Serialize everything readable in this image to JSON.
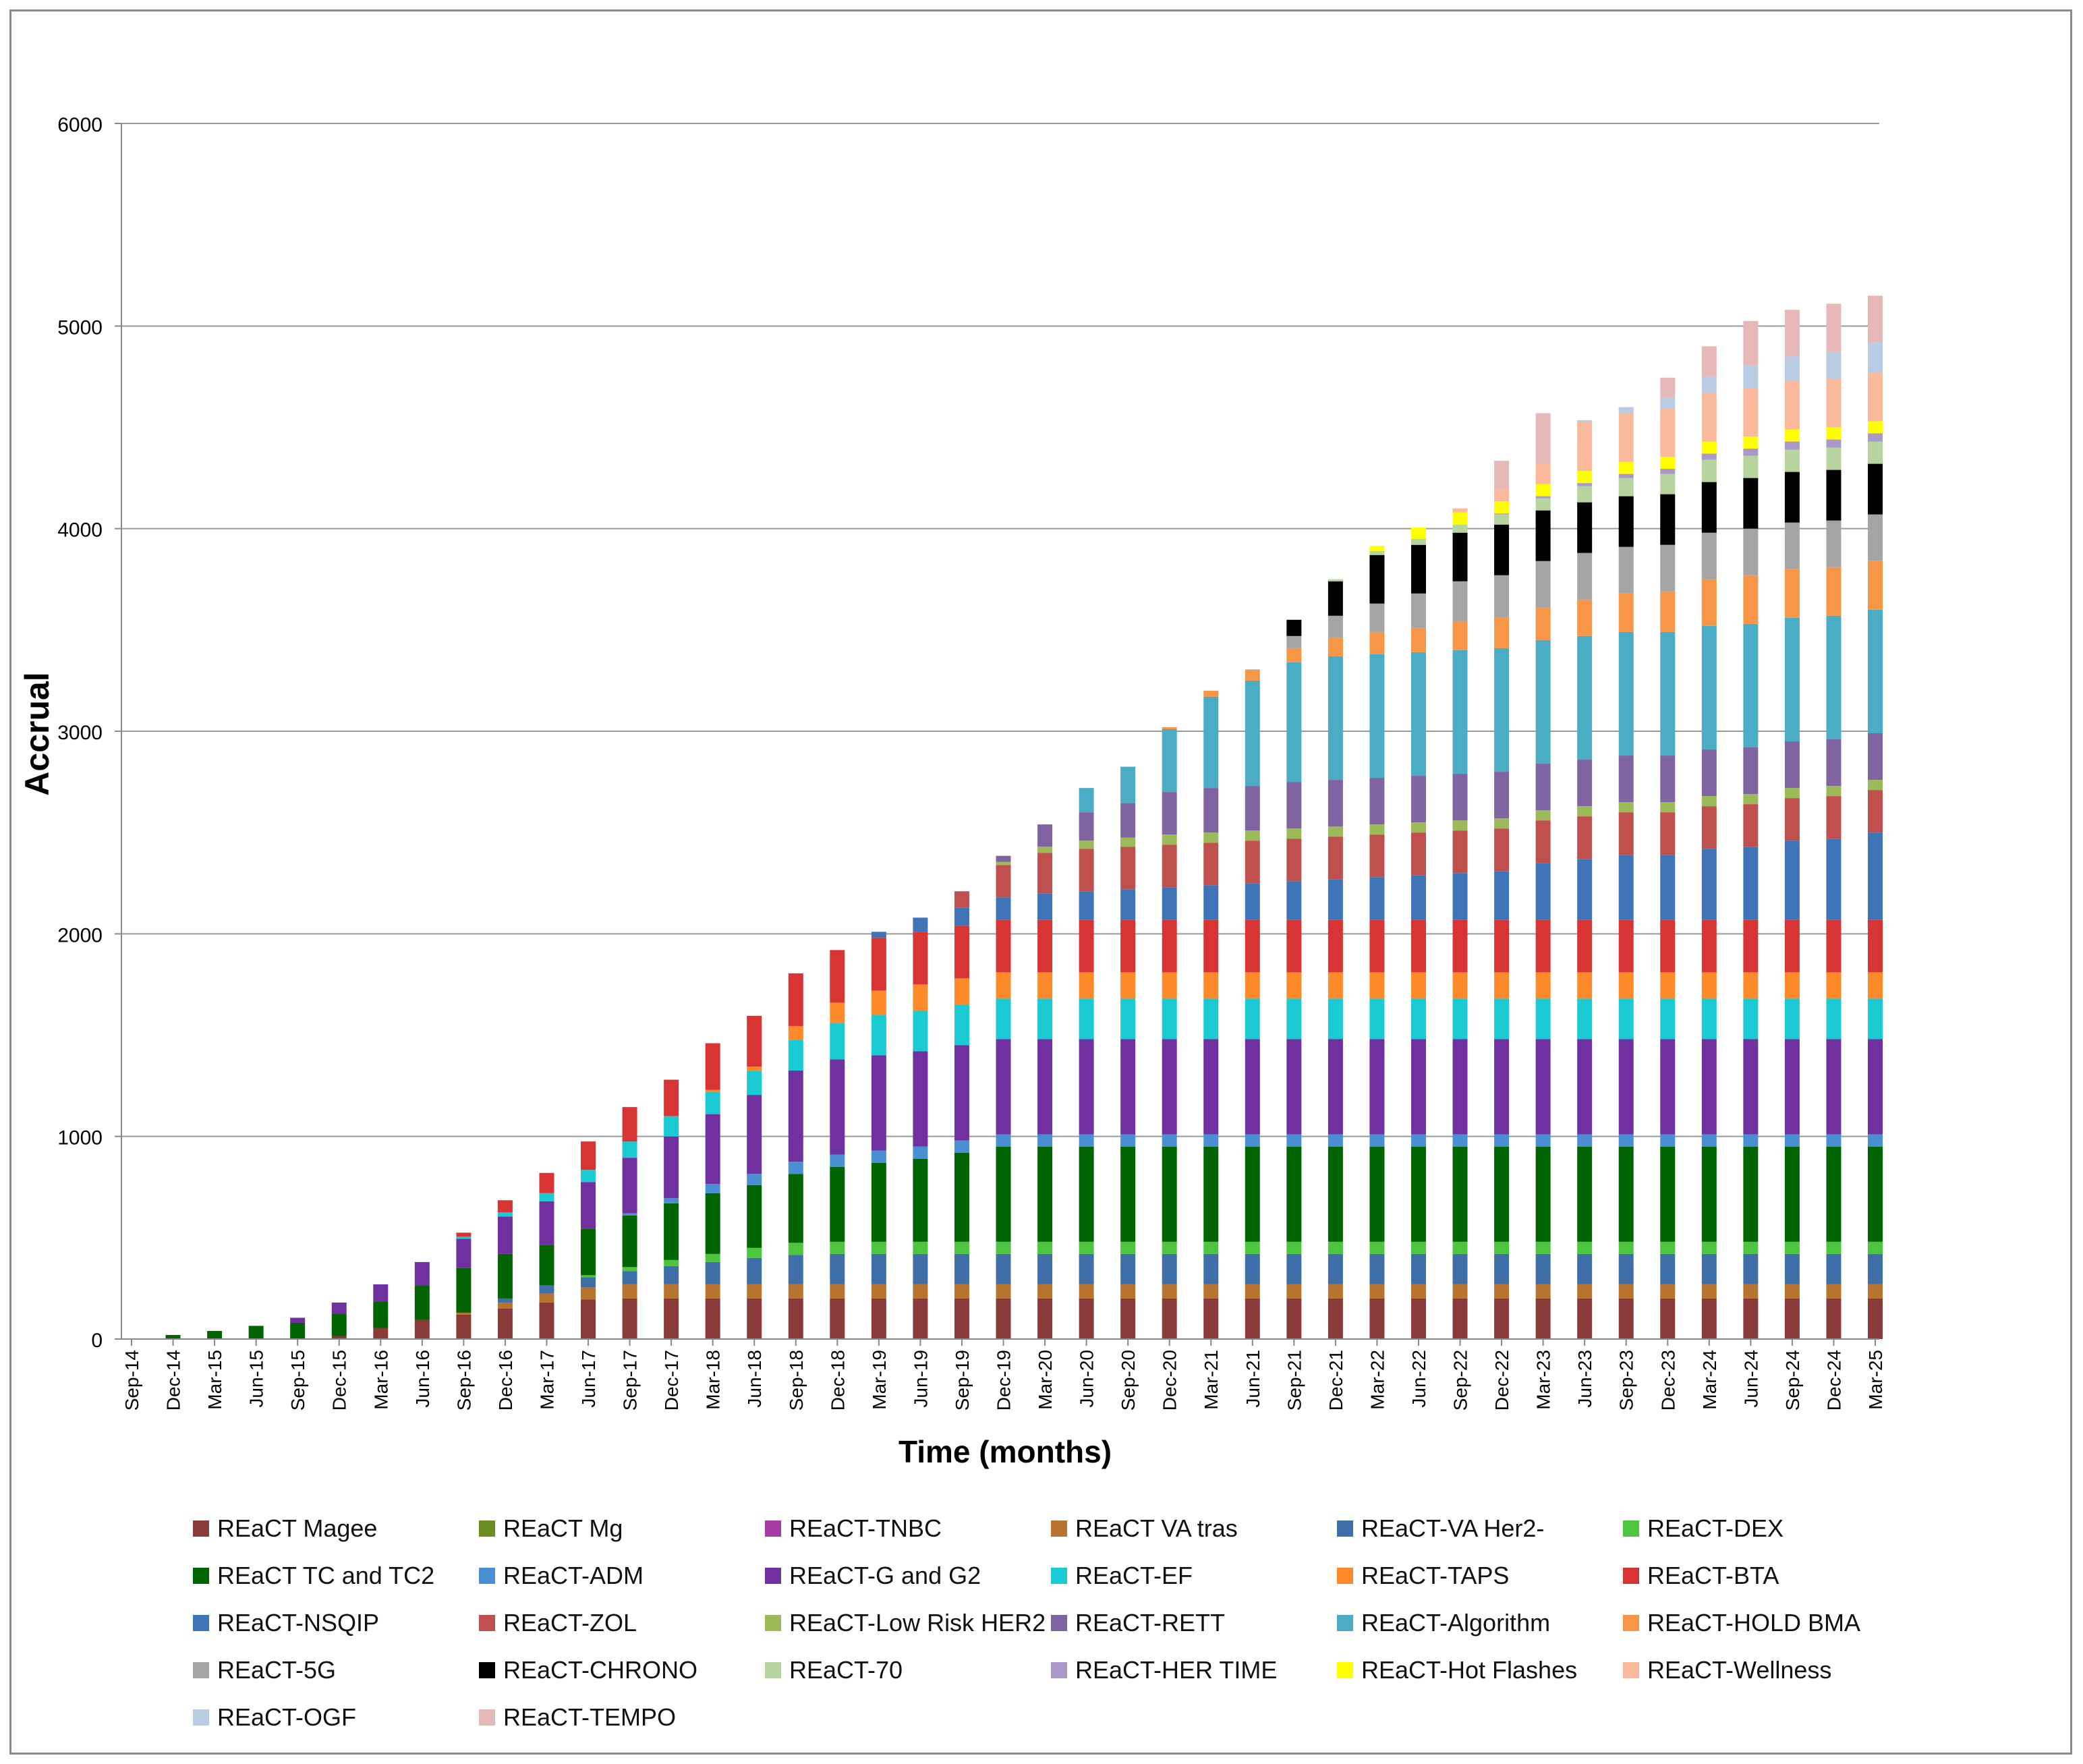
{
  "chart_data": {
    "type": "bar",
    "stacked": true,
    "title": "",
    "xlabel": "Time (months)",
    "ylabel": "Accrual",
    "ylim": [
      0,
      6000
    ],
    "yticks": [
      "0",
      "1000",
      "2000",
      "3000",
      "4000",
      "5000",
      "6000"
    ],
    "grid": true,
    "legend_position": "bottom",
    "categories": [
      "Sep-14",
      "Dec-14",
      "Mar-15",
      "Jun-15",
      "Sep-15",
      "Dec-15",
      "Mar-16",
      "Jun-16",
      "Sep-16",
      "Dec-16",
      "Mar-17",
      "Jun-17",
      "Sep-17",
      "Dec-17",
      "Mar-18",
      "Jun-18",
      "Sep-18",
      "Dec-18",
      "Mar-19",
      "Jun-19",
      "Sep-19",
      "Dec-19",
      "Mar-20",
      "Jun-20",
      "Sep-20",
      "Dec-20",
      "Mar-21",
      "Jun-21",
      "Sep-21",
      "Dec-21",
      "Mar-22",
      "Jun-22",
      "Sep-22",
      "Dec-22",
      "Mar-23",
      "Jun-23",
      "Sep-23",
      "Dec-23",
      "Mar-24",
      "Jun-24",
      "Sep-24",
      "Dec-24",
      "Mar-25"
    ],
    "series": [
      {
        "name": "REaCT Magee",
        "color": "#8B3A3A",
        "values": [
          0,
          0,
          0,
          0,
          0,
          15,
          55,
          95,
          120,
          150,
          180,
          195,
          200,
          200,
          200,
          200,
          200,
          200,
          200,
          200,
          200,
          200,
          200,
          200,
          200,
          200,
          200,
          200,
          200,
          200,
          200,
          200,
          200,
          200,
          200,
          200,
          200,
          200,
          200,
          200,
          200,
          200,
          200
        ]
      },
      {
        "name": "REaCT Mg",
        "color": "#6B8E23",
        "values": [
          0,
          0,
          0,
          0,
          0,
          0,
          0,
          0,
          0,
          0,
          0,
          0,
          0,
          0,
          0,
          0,
          0,
          0,
          0,
          0,
          0,
          0,
          0,
          0,
          0,
          0,
          0,
          0,
          0,
          0,
          0,
          0,
          0,
          0,
          0,
          0,
          0,
          0,
          0,
          0,
          0,
          0,
          0
        ]
      },
      {
        "name": "REaCT-TNBC",
        "color": "#A63BA6",
        "values": [
          0,
          0,
          0,
          0,
          0,
          0,
          0,
          0,
          0,
          0,
          0,
          0,
          0,
          0,
          0,
          0,
          0,
          0,
          0,
          0,
          0,
          0,
          0,
          0,
          0,
          0,
          0,
          0,
          0,
          0,
          0,
          0,
          0,
          0,
          0,
          0,
          0,
          0,
          0,
          0,
          0,
          0,
          0
        ]
      },
      {
        "name": "REaCT VA tras",
        "color": "#B8732E",
        "values": [
          0,
          0,
          0,
          0,
          0,
          0,
          0,
          0,
          10,
          30,
          45,
          60,
          70,
          70,
          70,
          70,
          70,
          70,
          70,
          70,
          70,
          70,
          70,
          70,
          70,
          70,
          70,
          70,
          70,
          70,
          70,
          70,
          70,
          70,
          70,
          70,
          70,
          70,
          70,
          70,
          70,
          70,
          70
        ]
      },
      {
        "name": "REaCT-VA Her2-",
        "color": "#3F6FA8",
        "values": [
          0,
          0,
          0,
          0,
          0,
          0,
          0,
          0,
          0,
          20,
          40,
          50,
          65,
          90,
          110,
          130,
          145,
          150,
          150,
          150,
          150,
          150,
          150,
          150,
          150,
          150,
          150,
          150,
          150,
          150,
          150,
          150,
          150,
          150,
          150,
          150,
          150,
          150,
          150,
          150,
          150,
          150,
          150
        ]
      },
      {
        "name": "REaCT-DEX",
        "color": "#4CC53F",
        "values": [
          0,
          0,
          0,
          0,
          0,
          0,
          0,
          0,
          0,
          0,
          0,
          10,
          20,
          30,
          40,
          50,
          60,
          60,
          60,
          60,
          60,
          60,
          60,
          60,
          60,
          60,
          60,
          60,
          60,
          60,
          60,
          60,
          60,
          60,
          60,
          60,
          60,
          60,
          60,
          60,
          60,
          60,
          60
        ]
      },
      {
        "name": "REaCT TC and TC2",
        "color": "#006400",
        "values": [
          0,
          20,
          40,
          65,
          80,
          110,
          130,
          170,
          220,
          220,
          200,
          230,
          255,
          280,
          300,
          310,
          340,
          370,
          390,
          410,
          440,
          470,
          470,
          470,
          470,
          470,
          470,
          470,
          470,
          470,
          470,
          470,
          470,
          470,
          470,
          470,
          470,
          470,
          470,
          470,
          470,
          470,
          470
        ]
      },
      {
        "name": "REaCT-ADM",
        "color": "#4A8FD4",
        "values": [
          0,
          0,
          0,
          0,
          0,
          0,
          0,
          0,
          0,
          0,
          0,
          0,
          10,
          25,
          45,
          55,
          60,
          60,
          60,
          60,
          60,
          60,
          60,
          60,
          60,
          60,
          60,
          60,
          60,
          60,
          60,
          60,
          60,
          60,
          60,
          60,
          60,
          60,
          60,
          60,
          60,
          60,
          60
        ]
      },
      {
        "name": "REaCT-G and G2",
        "color": "#7030A0",
        "values": [
          0,
          0,
          0,
          0,
          25,
          55,
          85,
          115,
          145,
          185,
          215,
          230,
          275,
          305,
          345,
          390,
          450,
          470,
          470,
          470,
          470,
          470,
          470,
          470,
          470,
          470,
          470,
          470,
          470,
          470,
          470,
          470,
          470,
          470,
          470,
          470,
          470,
          470,
          470,
          470,
          470,
          470,
          470
        ]
      },
      {
        "name": "REaCT-EF",
        "color": "#1ACBD4",
        "values": [
          0,
          0,
          0,
          0,
          0,
          0,
          0,
          0,
          10,
          20,
          40,
          60,
          80,
          100,
          110,
          120,
          150,
          180,
          200,
          200,
          200,
          200,
          200,
          200,
          200,
          200,
          200,
          200,
          200,
          200,
          200,
          200,
          200,
          200,
          200,
          200,
          200,
          200,
          200,
          200,
          200,
          200,
          200
        ]
      },
      {
        "name": "REaCT-TAPS",
        "color": "#FF8A2A",
        "values": [
          0,
          0,
          0,
          0,
          0,
          0,
          0,
          0,
          0,
          0,
          0,
          0,
          0,
          0,
          10,
          20,
          70,
          100,
          120,
          130,
          130,
          130,
          130,
          130,
          130,
          130,
          130,
          130,
          130,
          130,
          130,
          130,
          130,
          130,
          130,
          130,
          130,
          130,
          130,
          130,
          130,
          130,
          130
        ]
      },
      {
        "name": "REaCT-BTA",
        "color": "#D93434",
        "values": [
          0,
          0,
          0,
          0,
          0,
          0,
          0,
          0,
          20,
          60,
          100,
          140,
          170,
          180,
          230,
          250,
          260,
          260,
          260,
          260,
          260,
          260,
          260,
          260,
          260,
          260,
          260,
          260,
          260,
          260,
          260,
          260,
          260,
          260,
          260,
          260,
          260,
          260,
          260,
          260,
          260,
          260,
          260
        ]
      },
      {
        "name": "REaCT-NSQIP",
        "color": "#3F74B8",
        "values": [
          0,
          0,
          0,
          0,
          0,
          0,
          0,
          0,
          0,
          0,
          0,
          0,
          0,
          0,
          0,
          0,
          0,
          0,
          30,
          70,
          90,
          110,
          130,
          140,
          150,
          160,
          170,
          180,
          190,
          200,
          210,
          220,
          230,
          240,
          280,
          300,
          320,
          320,
          350,
          360,
          390,
          400,
          430
        ]
      },
      {
        "name": "REaCT-ZOL",
        "color": "#C0504D",
        "values": [
          0,
          0,
          0,
          0,
          0,
          0,
          0,
          0,
          0,
          0,
          0,
          0,
          0,
          0,
          0,
          0,
          0,
          0,
          0,
          0,
          80,
          160,
          200,
          210,
          210,
          210,
          210,
          210,
          210,
          210,
          210,
          210,
          210,
          210,
          210,
          210,
          210,
          210,
          210,
          210,
          210,
          210,
          210
        ]
      },
      {
        "name": "REaCT-Low Risk HER2",
        "color": "#9BBB59",
        "values": [
          0,
          0,
          0,
          0,
          0,
          0,
          0,
          0,
          0,
          0,
          0,
          0,
          0,
          0,
          0,
          0,
          0,
          0,
          0,
          0,
          0,
          15,
          30,
          40,
          45,
          50,
          50,
          50,
          50,
          50,
          50,
          50,
          50,
          50,
          50,
          50,
          50,
          50,
          50,
          50,
          50,
          50,
          50
        ]
      },
      {
        "name": "REaCT-RETT",
        "color": "#8064A2",
        "values": [
          0,
          0,
          0,
          0,
          0,
          0,
          0,
          0,
          0,
          0,
          0,
          0,
          0,
          0,
          0,
          0,
          0,
          0,
          0,
          0,
          0,
          30,
          110,
          140,
          170,
          210,
          220,
          220,
          230,
          230,
          230,
          230,
          230,
          230,
          230,
          230,
          230,
          230,
          230,
          230,
          230,
          230,
          230
        ]
      },
      {
        "name": "REaCT-Algorithm",
        "color": "#4BACC6",
        "values": [
          0,
          0,
          0,
          0,
          0,
          0,
          0,
          0,
          0,
          0,
          0,
          0,
          0,
          0,
          0,
          0,
          0,
          0,
          0,
          0,
          0,
          0,
          0,
          120,
          180,
          310,
          450,
          520,
          590,
          610,
          610,
          610,
          610,
          610,
          610,
          610,
          610,
          610,
          610,
          610,
          610,
          610,
          610
        ]
      },
      {
        "name": "REaCT-HOLD BMA",
        "color": "#F79646",
        "values": [
          0,
          0,
          0,
          0,
          0,
          0,
          0,
          0,
          0,
          0,
          0,
          0,
          0,
          0,
          0,
          0,
          0,
          0,
          0,
          0,
          0,
          0,
          0,
          0,
          0,
          10,
          30,
          50,
          70,
          90,
          110,
          120,
          140,
          150,
          160,
          180,
          190,
          200,
          230,
          240,
          240,
          240,
          240
        ]
      },
      {
        "name": "REaCT-5G",
        "color": "#A5A5A5",
        "values": [
          0,
          0,
          0,
          0,
          0,
          0,
          0,
          0,
          0,
          0,
          0,
          0,
          0,
          0,
          0,
          0,
          0,
          0,
          0,
          0,
          0,
          0,
          0,
          0,
          0,
          0,
          0,
          5,
          60,
          110,
          140,
          170,
          200,
          210,
          230,
          230,
          230,
          230,
          230,
          230,
          230,
          230,
          230
        ]
      },
      {
        "name": "REaCT-CHRONO",
        "color": "#000000",
        "values": [
          0,
          0,
          0,
          0,
          0,
          0,
          0,
          0,
          0,
          0,
          0,
          0,
          0,
          0,
          0,
          0,
          0,
          0,
          0,
          0,
          0,
          0,
          0,
          0,
          0,
          0,
          0,
          0,
          80,
          170,
          240,
          240,
          240,
          250,
          250,
          250,
          250,
          250,
          250,
          250,
          250,
          250,
          250
        ]
      },
      {
        "name": "REaCT-70",
        "color": "#B7D49E",
        "values": [
          0,
          0,
          0,
          0,
          0,
          0,
          0,
          0,
          0,
          0,
          0,
          0,
          0,
          0,
          0,
          0,
          0,
          0,
          0,
          0,
          0,
          0,
          0,
          0,
          0,
          0,
          0,
          0,
          0,
          10,
          20,
          30,
          40,
          50,
          60,
          80,
          90,
          100,
          110,
          110,
          110,
          110,
          110
        ]
      },
      {
        "name": "REaCT-HER TIME",
        "color": "#A998C8",
        "values": [
          0,
          0,
          0,
          0,
          0,
          0,
          0,
          0,
          0,
          0,
          0,
          0,
          0,
          0,
          0,
          0,
          0,
          0,
          0,
          0,
          0,
          0,
          0,
          0,
          0,
          0,
          0,
          0,
          0,
          0,
          0,
          0,
          0,
          5,
          10,
          15,
          20,
          25,
          30,
          35,
          40,
          40,
          40
        ]
      },
      {
        "name": "REaCT-Hot Flashes",
        "color": "#FFFF00",
        "values": [
          0,
          0,
          0,
          0,
          0,
          0,
          0,
          0,
          0,
          0,
          0,
          0,
          0,
          0,
          0,
          0,
          0,
          0,
          0,
          0,
          0,
          0,
          0,
          0,
          0,
          0,
          0,
          0,
          0,
          0,
          25,
          55,
          60,
          60,
          60,
          60,
          60,
          60,
          60,
          60,
          60,
          60,
          60
        ]
      },
      {
        "name": "REaCT-Wellness",
        "color": "#F9B99A",
        "values": [
          0,
          0,
          0,
          0,
          0,
          0,
          0,
          0,
          0,
          0,
          0,
          0,
          0,
          0,
          0,
          0,
          0,
          0,
          0,
          0,
          0,
          0,
          0,
          0,
          0,
          0,
          0,
          0,
          0,
          0,
          0,
          0,
          20,
          60,
          100,
          240,
          240,
          240,
          240,
          240,
          240,
          240,
          240
        ]
      },
      {
        "name": "REaCT-OGF",
        "color": "#B8CCE4",
        "values": [
          0,
          0,
          0,
          0,
          0,
          0,
          0,
          0,
          0,
          0,
          0,
          0,
          0,
          0,
          0,
          0,
          0,
          0,
          0,
          0,
          0,
          0,
          0,
          0,
          0,
          0,
          0,
          0,
          0,
          0,
          0,
          0,
          0,
          0,
          0,
          10,
          30,
          50,
          80,
          110,
          120,
          130,
          150
        ]
      },
      {
        "name": "REaCT-TEMPO",
        "color": "#E6B9B8",
        "values": [
          0,
          0,
          0,
          0,
          0,
          0,
          0,
          0,
          0,
          0,
          0,
          0,
          0,
          0,
          0,
          0,
          0,
          0,
          0,
          0,
          0,
          0,
          0,
          0,
          0,
          0,
          0,
          0,
          0,
          0,
          0,
          0,
          0,
          140,
          250,
          0,
          0,
          100,
          150,
          220,
          230,
          240,
          230
        ]
      }
    ]
  }
}
